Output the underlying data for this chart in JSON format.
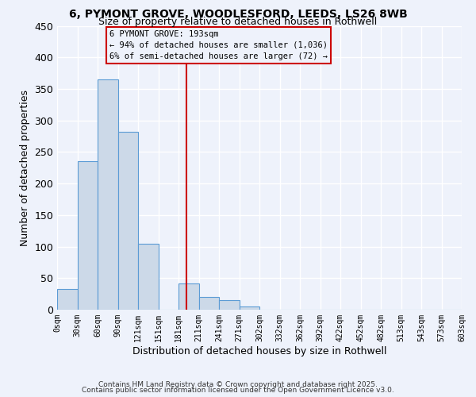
{
  "title_line1": "6, PYMONT GROVE, WOODLESFORD, LEEDS, LS26 8WB",
  "title_line2": "Size of property relative to detached houses in Rothwell",
  "xlabel": "Distribution of detached houses by size in Rothwell",
  "ylabel": "Number of detached properties",
  "footer_line1": "Contains HM Land Registry data © Crown copyright and database right 2025.",
  "footer_line2": "Contains public sector information licensed under the Open Government Licence v3.0.",
  "bin_labels": [
    "0sqm",
    "30sqm",
    "60sqm",
    "90sqm",
    "121sqm",
    "151sqm",
    "181sqm",
    "211sqm",
    "241sqm",
    "271sqm",
    "302sqm",
    "332sqm",
    "362sqm",
    "392sqm",
    "422sqm",
    "452sqm",
    "482sqm",
    "513sqm",
    "543sqm",
    "573sqm",
    "603sqm"
  ],
  "counts": [
    33,
    236,
    365,
    282,
    105,
    0,
    41,
    20,
    15,
    5,
    0,
    0,
    0,
    0,
    0,
    0,
    0,
    0,
    0,
    0
  ],
  "bar_color": "#ccd9e8",
  "bar_edge_color": "#5b9bd5",
  "property_line_color": "#cc0000",
  "annotation_title": "6 PYMONT GROVE: 193sqm",
  "annotation_line1": "← 94% of detached houses are smaller (1,036)",
  "annotation_line2": "6% of semi-detached houses are larger (72) →",
  "annotation_box_color": "#cc0000",
  "ylim": [
    0,
    450
  ],
  "yticks": [
    0,
    50,
    100,
    150,
    200,
    250,
    300,
    350,
    400,
    450
  ],
  "background_color": "#eef2fb",
  "grid_color": "#ffffff"
}
